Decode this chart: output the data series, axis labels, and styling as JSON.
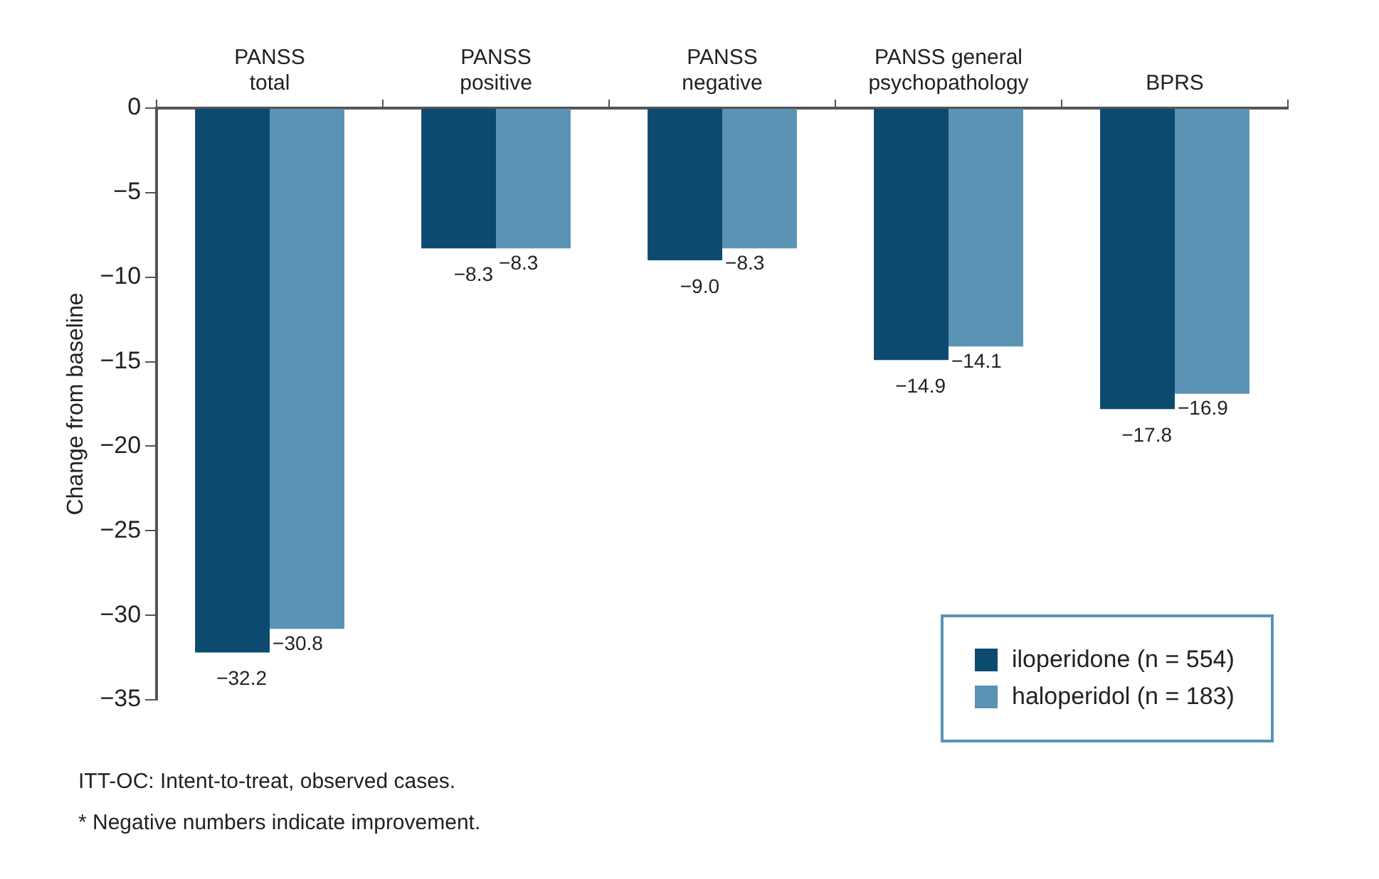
{
  "chart_data": {
    "type": "bar",
    "ylabel": "Change from baseline",
    "categories": [
      "PANSS total",
      "PANSS positive",
      "PANSS negative",
      "PANSS general psychopathology",
      "BPRS"
    ],
    "series": [
      {
        "name": "iloperidone (n = 554)",
        "color": "#0d4a70",
        "values": [
          -32.2,
          -8.3,
          -9.0,
          -14.9,
          -17.8
        ],
        "value_labels": [
          "−32.2",
          "−8.3",
          "−9.0",
          "−14.9",
          "−17.8"
        ]
      },
      {
        "name": "haloperidol (n = 183)",
        "color": "#5b93b5",
        "values": [
          -30.8,
          -8.3,
          -8.3,
          -14.1,
          -16.9
        ],
        "value_labels": [
          "−30.8",
          "−8.3",
          "−8.3",
          "−14.1",
          "−16.9"
        ]
      }
    ],
    "ylim": [
      -35,
      0
    ],
    "yticks": [
      0,
      -5,
      -10,
      -15,
      -20,
      -25,
      -30,
      -35
    ],
    "grid": false,
    "legend": "bottom right",
    "annotations": [
      "ITT-OC: Intent-to-treat, observed cases.",
      "* Negative numbers indicate improvement."
    ]
  }
}
